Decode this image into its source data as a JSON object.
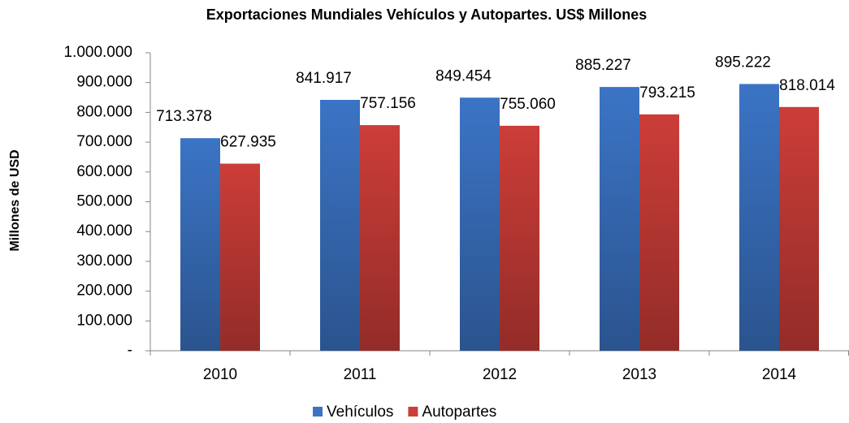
{
  "chart_data": {
    "type": "bar",
    "title": "Exportaciones Mundiales Vehículos y Autopartes. US$ Millones",
    "y_label": "Millones de USD",
    "categories": [
      "2010",
      "2011",
      "2012",
      "2013",
      "2014"
    ],
    "series": [
      {
        "name": "Vehículos",
        "color": "#3b74c5",
        "values": [
          713378,
          841917,
          849454,
          885227,
          895222
        ],
        "value_labels": [
          "713.378",
          "841.917",
          "849.454",
          "885.227",
          "895.222"
        ]
      },
      {
        "name": "Autopartes",
        "color": "#cc3d38",
        "values": [
          627935,
          757156,
          755060,
          793215,
          818014
        ],
        "value_labels": [
          "627.935",
          "757.156",
          "755.060",
          "793.215",
          "818.014"
        ]
      }
    ],
    "ylim": [
      0,
      1000000
    ],
    "yticks": [
      {
        "value": 0,
        "label": "-"
      },
      {
        "value": 100000,
        "label": "100.000"
      },
      {
        "value": 200000,
        "label": "200.000"
      },
      {
        "value": 300000,
        "label": "300.000"
      },
      {
        "value": 400000,
        "label": "400.000"
      },
      {
        "value": 500000,
        "label": "500.000"
      },
      {
        "value": 600000,
        "label": "600.000"
      },
      {
        "value": 700000,
        "label": "700.000"
      },
      {
        "value": 800000,
        "label": "800.000"
      },
      {
        "value": 900000,
        "label": "900.000"
      },
      {
        "value": 1000000,
        "label": "1.000.000"
      }
    ],
    "grid": false,
    "legend": "bottom"
  }
}
